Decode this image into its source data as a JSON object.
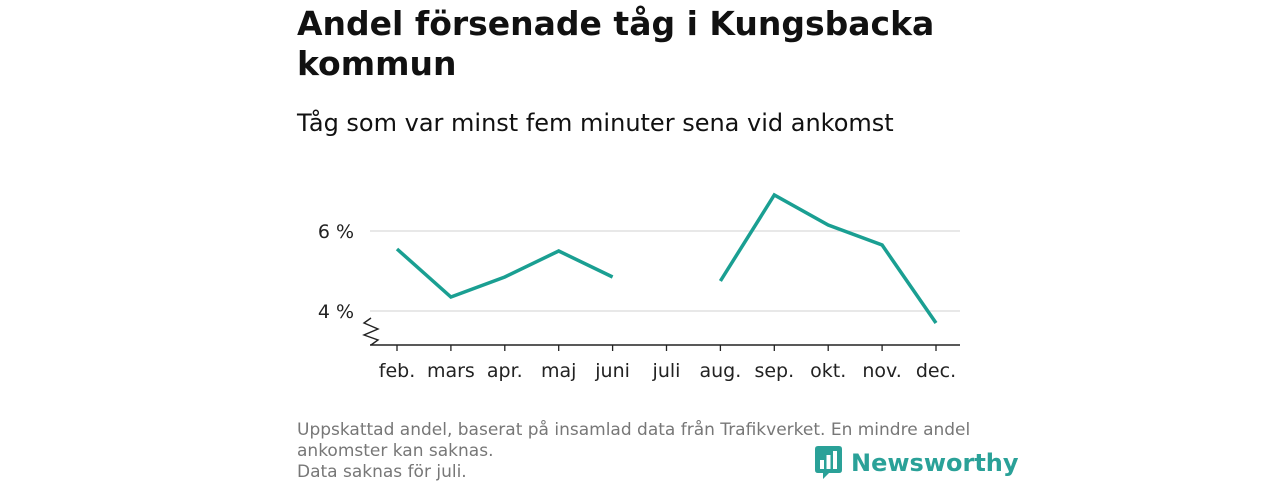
{
  "title": "Andel försenade tåg i Kungsbacka kommun",
  "subtitle": "Tåg som var minst fem minuter sena vid ankomst",
  "footnote": {
    "line1": "Uppskattad andel, baserat på insamlad data från Trafikverket. En mindre andel ankomster kan saknas.",
    "line2": "Data saknas för juli."
  },
  "brand": {
    "name": "Newsworthy",
    "color": "#2aa198",
    "icon": "bar-chart-speech-bubble-icon"
  },
  "chart_data": {
    "type": "line",
    "title": "Andel försenade tåg i Kungsbacka kommun",
    "subtitle": "Tåg som var minst fem minuter sena vid ankomst",
    "categories": [
      "feb.",
      "mars",
      "apr.",
      "maj",
      "juni",
      "juli",
      "aug.",
      "sep.",
      "okt.",
      "nov.",
      "dec."
    ],
    "series": [
      {
        "values": [
          5.55,
          4.35,
          4.85,
          5.5,
          4.85,
          null,
          4.75,
          6.9,
          6.15,
          5.65,
          3.7
        ]
      }
    ],
    "y_ticks": [
      4,
      6
    ],
    "y_tick_labels": [
      "4 %",
      "6 %"
    ],
    "ylim": [
      3.2,
      7.2
    ],
    "y_axis_break": true,
    "grid": true,
    "line_color": "#1a9f92",
    "grid_color": "#d9d9d9",
    "axis_color": "#222222"
  }
}
